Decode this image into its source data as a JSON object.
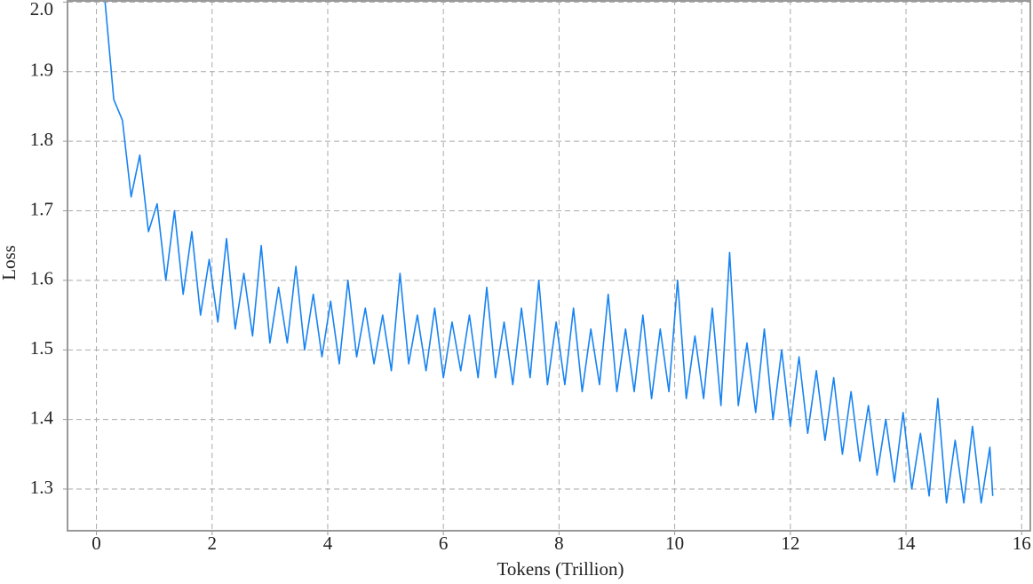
{
  "chart_data": {
    "type": "line",
    "xlabel": "Tokens (Trillion)",
    "ylabel": "Loss",
    "x": [
      0.15,
      0.3,
      0.45,
      0.6,
      0.75,
      0.9,
      1.05,
      1.2,
      1.35,
      1.5,
      1.65,
      1.8,
      1.95,
      2.1,
      2.25,
      2.4,
      2.55,
      2.7,
      2.85,
      3.0,
      3.15,
      3.3,
      3.45,
      3.6,
      3.75,
      3.9,
      4.05,
      4.2,
      4.35,
      4.5,
      4.65,
      4.8,
      4.95,
      5.1,
      5.25,
      5.4,
      5.55,
      5.7,
      5.85,
      6.0,
      6.15,
      6.3,
      6.45,
      6.6,
      6.75,
      6.9,
      7.05,
      7.2,
      7.35,
      7.5,
      7.65,
      7.8,
      7.95,
      8.1,
      8.25,
      8.4,
      8.55,
      8.7,
      8.85,
      9.0,
      9.15,
      9.3,
      9.45,
      9.6,
      9.75,
      9.9,
      10.05,
      10.2,
      10.35,
      10.5,
      10.65,
      10.8,
      10.95,
      11.1,
      11.25,
      11.4,
      11.55,
      11.7,
      11.85,
      12.0,
      12.15,
      12.3,
      12.45,
      12.6,
      12.75,
      12.9,
      13.05,
      13.2,
      13.35,
      13.5,
      13.65,
      13.8,
      13.95,
      14.1,
      14.25,
      14.4,
      14.55,
      14.7,
      14.85,
      15.0,
      15.15,
      15.3,
      15.45,
      15.5
    ],
    "series": [
      {
        "color": "#1783f2",
        "values": [
          2.0,
          1.86,
          1.83,
          1.72,
          1.78,
          1.67,
          1.71,
          1.6,
          1.7,
          1.58,
          1.67,
          1.55,
          1.63,
          1.54,
          1.66,
          1.53,
          1.61,
          1.52,
          1.65,
          1.51,
          1.59,
          1.51,
          1.62,
          1.5,
          1.58,
          1.49,
          1.57,
          1.48,
          1.6,
          1.49,
          1.56,
          1.48,
          1.55,
          1.47,
          1.61,
          1.48,
          1.55,
          1.47,
          1.56,
          1.46,
          1.54,
          1.47,
          1.55,
          1.46,
          1.59,
          1.46,
          1.54,
          1.45,
          1.56,
          1.46,
          1.6,
          1.45,
          1.54,
          1.45,
          1.56,
          1.44,
          1.53,
          1.45,
          1.58,
          1.44,
          1.53,
          1.44,
          1.55,
          1.43,
          1.53,
          1.44,
          1.6,
          1.43,
          1.52,
          1.43,
          1.56,
          1.42,
          1.64,
          1.42,
          1.51,
          1.41,
          1.53,
          1.4,
          1.5,
          1.39,
          1.49,
          1.38,
          1.47,
          1.37,
          1.46,
          1.35,
          1.44,
          1.34,
          1.42,
          1.32,
          1.4,
          1.31,
          1.41,
          1.3,
          1.38,
          1.29,
          1.43,
          1.28,
          1.37,
          1.28,
          1.39,
          1.28,
          1.36,
          1.29
        ]
      }
    ],
    "xlim": [
      -0.5,
      16.15
    ],
    "ylim": [
      1.24,
      2.003
    ],
    "xticks": [
      0,
      2,
      4,
      6,
      8,
      10,
      12,
      14,
      16
    ],
    "yticks": [
      1.3,
      1.4,
      1.5,
      1.6,
      1.7,
      1.8,
      1.9,
      {
        "value": 2.0,
        "label": "2.0"
      }
    ],
    "grid": true
  }
}
